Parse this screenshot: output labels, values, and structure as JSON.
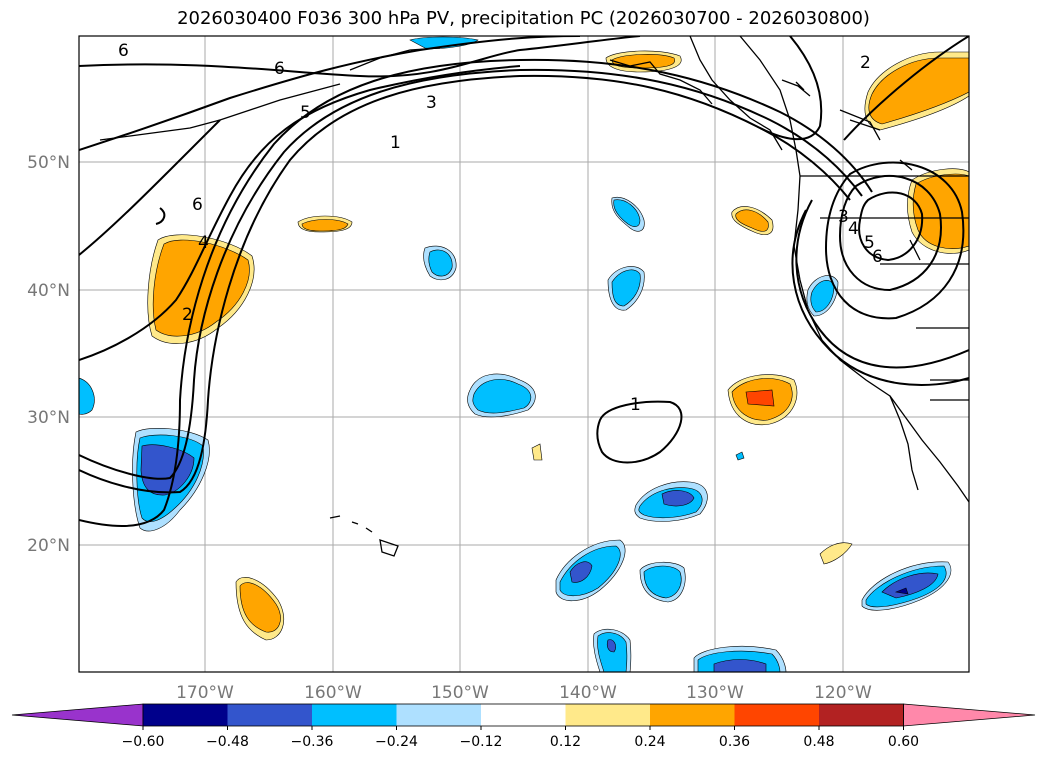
{
  "title": "2026030400 F036 300 hPa PV, precipitation PC (2026030700 - 2026030800)",
  "map": {
    "lon_labels": [
      "170°W",
      "160°W",
      "150°W",
      "140°W",
      "130°W",
      "120°W"
    ],
    "lat_labels": [
      "50°N",
      "40°N",
      "30°N",
      "20°N"
    ],
    "contour_labels": [
      "6",
      "6",
      "5",
      "3",
      "1",
      "6",
      "4",
      "2",
      "2",
      "1",
      "3",
      "4",
      "5",
      "6"
    ]
  },
  "colorbar": {
    "ticks": [
      "−0.60",
      "−0.48",
      "−0.36",
      "−0.24",
      "−0.12",
      "0.12",
      "0.24",
      "0.36",
      "0.48",
      "0.60"
    ],
    "colors": [
      "#9933cc",
      "#00008b",
      "#3355cc",
      "#00bfff",
      "#aee0ff",
      "#ffffff",
      "#ffe98a",
      "#ffa500",
      "#ff4500",
      "#b22222",
      "#ff88aa"
    ]
  },
  "fills": {
    "neg_light": "#aee0ff",
    "neg_mid": "#00bfff",
    "neg_dark": "#3355cc",
    "neg_darkest": "#00008b",
    "pos_light": "#ffe98a",
    "pos_mid": "#ffa500",
    "pos_dark": "#ff4500"
  }
}
